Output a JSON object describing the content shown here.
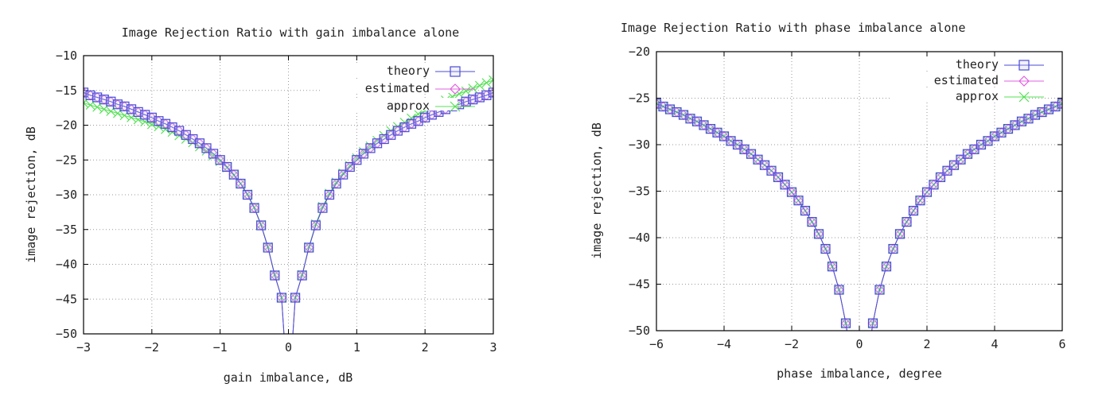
{
  "colors": {
    "theory": "#4b4bd6",
    "estimated": "#e060e0",
    "approx": "#54e054"
  },
  "chart_data": [
    {
      "type": "line",
      "title": "Image Rejection Ratio with gain imbalance alone",
      "xlabel": "gain imbalance, dB",
      "ylabel": "image rejection, dB",
      "xlim": [
        -3,
        3
      ],
      "ylim": [
        -50,
        -10
      ],
      "xticks": [
        -3,
        -2,
        -1,
        0,
        1,
        2,
        3
      ],
      "yticks": [
        -50,
        -45,
        -40,
        -35,
        -30,
        -25,
        -20,
        -15,
        -10
      ],
      "grid": true,
      "legend_position": "top-right",
      "x": [
        -3.0,
        -2.9,
        -2.8,
        -2.7,
        -2.6,
        -2.5,
        -2.4,
        -2.3,
        -2.2,
        -2.1,
        -2.0,
        -1.9,
        -1.8,
        -1.7,
        -1.6,
        -1.5,
        -1.4,
        -1.3,
        -1.2,
        -1.1,
        -1.0,
        -0.9,
        -0.8,
        -0.7,
        -0.6,
        -0.5,
        -0.4,
        -0.3,
        -0.2,
        -0.1,
        0.1,
        0.2,
        0.3,
        0.4,
        0.5,
        0.6,
        0.7,
        0.8,
        0.9,
        1.0,
        1.1,
        1.2,
        1.3,
        1.4,
        1.5,
        1.6,
        1.7,
        1.8,
        1.9,
        2.0,
        2.1,
        2.2,
        2.3,
        2.4,
        2.5,
        2.6,
        2.7,
        2.8,
        2.9,
        3.0
      ],
      "series": [
        {
          "name": "theory",
          "marker": "square",
          "values": [
            -15.3,
            -15.7,
            -16.0,
            -16.3,
            -16.6,
            -17.0,
            -17.3,
            -17.7,
            -18.1,
            -18.5,
            -18.9,
            -19.4,
            -19.8,
            -20.3,
            -20.8,
            -21.4,
            -22.0,
            -22.6,
            -23.3,
            -24.1,
            -25.0,
            -26.0,
            -27.1,
            -28.4,
            -30.0,
            -31.9,
            -34.4,
            -37.6,
            -41.6,
            -44.8,
            -44.8,
            -41.6,
            -37.6,
            -34.4,
            -31.9,
            -30.0,
            -28.4,
            -27.1,
            -26.0,
            -25.0,
            -24.1,
            -23.3,
            -22.6,
            -22.0,
            -21.4,
            -20.8,
            -20.3,
            -19.8,
            -19.4,
            -18.9,
            -18.5,
            -18.1,
            -17.7,
            -17.3,
            -17.0,
            -16.6,
            -16.3,
            -16.0,
            -15.7,
            -15.3
          ]
        },
        {
          "name": "estimated",
          "marker": "diamond",
          "values": [
            -15.3,
            -15.7,
            -16.0,
            -16.3,
            -16.6,
            -17.0,
            -17.3,
            -17.7,
            -18.1,
            -18.5,
            -18.9,
            -19.4,
            -19.8,
            -20.3,
            -20.8,
            -21.4,
            -22.0,
            -22.6,
            -23.3,
            -24.1,
            -25.0,
            -26.0,
            -27.1,
            -28.4,
            -30.0,
            -31.9,
            -34.4,
            -37.6,
            -41.6,
            -44.8,
            -44.8,
            -41.6,
            -37.6,
            -34.4,
            -31.9,
            -30.0,
            -28.4,
            -27.1,
            -26.0,
            -25.0,
            -24.1,
            -23.3,
            -22.6,
            -22.0,
            -21.4,
            -20.8,
            -20.3,
            -19.8,
            -19.4,
            -18.9,
            -18.5,
            -18.1,
            -17.7,
            -17.3,
            -17.0,
            -16.6,
            -16.3,
            -16.0,
            -15.7,
            -15.3
          ]
        },
        {
          "name": "approx",
          "marker": "x",
          "values": [
            -16.8,
            -17.1,
            -17.4,
            -17.7,
            -18.0,
            -18.3,
            -18.6,
            -18.9,
            -19.2,
            -19.5,
            -19.9,
            -20.2,
            -20.6,
            -21.0,
            -21.5,
            -22.0,
            -22.5,
            -23.1,
            -23.7,
            -24.4,
            -25.2,
            -26.1,
            -27.2,
            -28.4,
            -29.9,
            -31.8,
            -34.3,
            -37.5,
            -41.5,
            -44.8,
            -44.8,
            -41.5,
            -37.5,
            -34.2,
            -31.7,
            -29.8,
            -28.2,
            -26.9,
            -25.8,
            -24.7,
            -23.8,
            -23.0,
            -22.2,
            -21.5,
            -20.8,
            -20.2,
            -19.6,
            -19.0,
            -18.4,
            -17.9,
            -17.4,
            -16.9,
            -16.4,
            -15.9,
            -15.5,
            -15.1,
            -14.7,
            -14.3,
            -13.9,
            -13.5
          ]
        }
      ]
    },
    {
      "type": "line",
      "title": "Image Rejection Ratio with phase imbalance alone",
      "xlabel": "phase imbalance, degree",
      "ylabel": "image rejection, dB",
      "xlim": [
        -6,
        6
      ],
      "ylim": [
        -50,
        -20
      ],
      "xticks": [
        -6,
        -4,
        -2,
        0,
        2,
        4,
        6
      ],
      "yticks": [
        -50,
        -45,
        -40,
        -35,
        -30,
        -25,
        -20
      ],
      "grid": true,
      "legend_position": "top-right",
      "x": [
        -6.0,
        -5.8,
        -5.6,
        -5.4,
        -5.2,
        -5.0,
        -4.8,
        -4.6,
        -4.4,
        -4.2,
        -4.0,
        -3.8,
        -3.6,
        -3.4,
        -3.2,
        -3.0,
        -2.8,
        -2.6,
        -2.4,
        -2.2,
        -2.0,
        -1.8,
        -1.6,
        -1.4,
        -1.2,
        -1.0,
        -0.8,
        -0.6,
        -0.4,
        0.4,
        0.6,
        0.8,
        1.0,
        1.2,
        1.4,
        1.6,
        1.8,
        2.0,
        2.2,
        2.4,
        2.6,
        2.8,
        3.0,
        3.2,
        3.4,
        3.6,
        3.8,
        4.0,
        4.2,
        4.4,
        4.6,
        4.8,
        5.0,
        5.2,
        5.4,
        5.6,
        5.8,
        6.0
      ],
      "series": [
        {
          "name": "theory",
          "marker": "square",
          "values": [
            -25.6,
            -25.9,
            -26.2,
            -26.5,
            -26.8,
            -27.2,
            -27.5,
            -27.9,
            -28.3,
            -28.7,
            -29.1,
            -29.6,
            -30.0,
            -30.5,
            -31.0,
            -31.6,
            -32.2,
            -32.8,
            -33.5,
            -34.3,
            -35.1,
            -36.0,
            -37.1,
            -38.3,
            -39.6,
            -41.2,
            -43.1,
            -45.6,
            -49.2,
            -49.2,
            -45.6,
            -43.1,
            -41.2,
            -39.6,
            -38.3,
            -37.1,
            -36.0,
            -35.1,
            -34.3,
            -33.5,
            -32.8,
            -32.2,
            -31.6,
            -31.0,
            -30.5,
            -30.0,
            -29.6,
            -29.1,
            -28.7,
            -28.3,
            -27.9,
            -27.5,
            -27.2,
            -26.8,
            -26.5,
            -26.2,
            -25.9,
            -25.6
          ]
        },
        {
          "name": "estimated",
          "marker": "diamond",
          "values": [
            -25.6,
            -25.9,
            -26.2,
            -26.5,
            -26.8,
            -27.2,
            -27.5,
            -27.9,
            -28.3,
            -28.7,
            -29.1,
            -29.6,
            -30.0,
            -30.5,
            -31.0,
            -31.6,
            -32.2,
            -32.8,
            -33.5,
            -34.3,
            -35.1,
            -36.0,
            -37.1,
            -38.3,
            -39.6,
            -41.2,
            -43.1,
            -45.6,
            -49.2,
            -49.2,
            -45.6,
            -43.1,
            -41.2,
            -39.6,
            -38.3,
            -37.1,
            -36.0,
            -35.1,
            -34.3,
            -33.5,
            -32.8,
            -32.2,
            -31.6,
            -31.0,
            -30.5,
            -30.0,
            -29.6,
            -29.1,
            -28.7,
            -28.3,
            -27.9,
            -27.5,
            -27.2,
            -26.8,
            -26.5,
            -26.2,
            -25.9,
            -25.6
          ]
        },
        {
          "name": "approx",
          "marker": "x",
          "values": [
            -25.6,
            -25.9,
            -26.2,
            -26.5,
            -26.8,
            -27.2,
            -27.5,
            -27.9,
            -28.3,
            -28.7,
            -29.1,
            -29.6,
            -30.0,
            -30.5,
            -31.0,
            -31.6,
            -32.2,
            -32.8,
            -33.5,
            -34.3,
            -35.1,
            -36.0,
            -37.1,
            -38.3,
            -39.6,
            -41.2,
            -43.1,
            -45.6,
            -49.2,
            -49.2,
            -45.6,
            -43.1,
            -41.2,
            -39.6,
            -38.3,
            -37.1,
            -36.0,
            -35.1,
            -34.3,
            -33.5,
            -32.8,
            -32.2,
            -31.6,
            -31.0,
            -30.5,
            -30.0,
            -29.6,
            -29.1,
            -28.7,
            -28.3,
            -27.9,
            -27.5,
            -27.2,
            -26.8,
            -26.5,
            -26.2,
            -25.9,
            -25.6
          ]
        }
      ]
    }
  ]
}
